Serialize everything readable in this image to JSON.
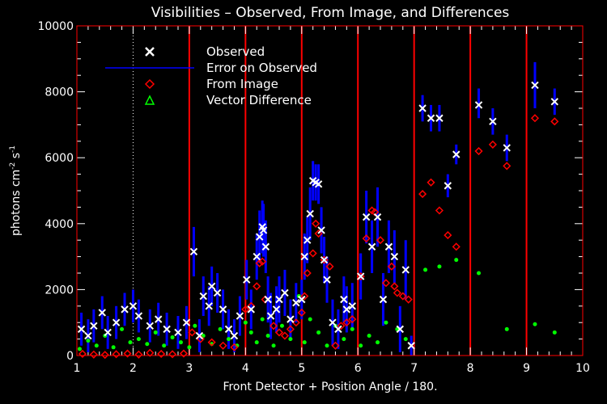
{
  "chart_data": {
    "type": "scatter",
    "title": "Visibilities – Observed, From Image, and Differences",
    "xlabel": "Front Detector + Position Angle / 180.",
    "ylabel_main": "photons cm",
    "ylabel_exp1": "-2",
    "ylabel_mid": " s",
    "ylabel_exp2": "-1",
    "xlim": [
      1,
      10
    ],
    "ylim": [
      0,
      10000
    ],
    "xticks": [
      1,
      2,
      3,
      4,
      5,
      6,
      7,
      8,
      9,
      10
    ],
    "yticks": [
      0,
      2000,
      4000,
      6000,
      8000,
      10000
    ],
    "detector_boundaries": [
      3,
      4,
      5,
      6,
      7,
      8,
      9
    ],
    "dotted_line_x": 2.0,
    "colors": {
      "observed": "#ffffff",
      "error": "#0000ff",
      "from_image": "#ff0000",
      "difference": "#00ff00",
      "boundary": "#ff0000",
      "frame": "#ff0000"
    },
    "legend": [
      {
        "label": "Observed",
        "symbol": "x",
        "color": "#ffffff"
      },
      {
        "label": "Error on Observed",
        "symbol": "line",
        "color": "#0000ff"
      },
      {
        "label": "From Image",
        "symbol": "diamond",
        "color": "#ff0000"
      },
      {
        "label": "Vector Difference",
        "symbol": "triangle",
        "color": "#00ff00"
      }
    ],
    "series": [
      {
        "name": "Observed",
        "x": [
          1.08,
          1.2,
          1.3,
          1.45,
          1.55,
          1.7,
          1.85,
          2.0,
          2.1,
          2.3,
          2.45,
          2.6,
          2.8,
          2.95,
          3.08,
          3.18,
          3.25,
          3.35,
          3.4,
          3.5,
          3.6,
          3.7,
          3.8,
          3.9,
          4.02,
          4.1,
          4.2,
          4.25,
          4.3,
          4.32,
          4.36,
          4.4,
          4.45,
          4.55,
          4.6,
          4.7,
          4.8,
          4.9,
          5.0,
          5.05,
          5.1,
          5.15,
          5.2,
          5.25,
          5.3,
          5.35,
          5.4,
          5.45,
          5.55,
          5.65,
          5.75,
          5.8,
          5.9,
          6.05,
          6.15,
          6.25,
          6.35,
          6.45,
          6.55,
          6.65,
          6.75,
          6.85,
          6.95,
          7.15,
          7.3,
          7.45,
          7.6,
          7.75,
          8.15,
          8.4,
          8.65,
          9.15,
          9.5
        ],
        "y": [
          800,
          600,
          900,
          1300,
          700,
          1000,
          1400,
          1500,
          1200,
          900,
          1100,
          800,
          700,
          1000,
          3150,
          600,
          1800,
          1500,
          2100,
          1900,
          1400,
          800,
          600,
          1200,
          2300,
          1400,
          3000,
          3600,
          3900,
          3800,
          3300,
          1700,
          1200,
          1400,
          1700,
          1900,
          1100,
          1600,
          1700,
          3000,
          3500,
          4300,
          5300,
          5250,
          5200,
          3800,
          2900,
          2300,
          1000,
          800,
          1700,
          1400,
          1500,
          2400,
          4200,
          3300,
          4200,
          1700,
          3300,
          3000,
          800,
          2600,
          300,
          7500,
          7200,
          7200,
          5150,
          6100,
          7600,
          7100,
          6300,
          8200,
          7700
        ]
      },
      {
        "name": "Error on Observed",
        "x": [
          1.08,
          1.2,
          1.3,
          1.45,
          1.55,
          1.7,
          1.85,
          2.0,
          2.1,
          2.3,
          2.45,
          2.6,
          2.8,
          2.95,
          3.08,
          3.18,
          3.25,
          3.35,
          3.4,
          3.5,
          3.6,
          3.7,
          3.8,
          3.9,
          4.02,
          4.1,
          4.2,
          4.25,
          4.3,
          4.32,
          4.36,
          4.4,
          4.45,
          4.55,
          4.6,
          4.7,
          4.8,
          4.9,
          5.0,
          5.05,
          5.1,
          5.15,
          5.2,
          5.25,
          5.3,
          5.35,
          5.4,
          5.45,
          5.55,
          5.65,
          5.75,
          5.8,
          5.9,
          6.05,
          6.15,
          6.25,
          6.35,
          6.45,
          6.55,
          6.65,
          6.75,
          6.85,
          6.95,
          7.15,
          7.3,
          7.45,
          7.6,
          7.75,
          8.15,
          8.4,
          8.65,
          9.15,
          9.5
        ],
        "low": [
          300,
          100,
          400,
          800,
          200,
          500,
          900,
          1000,
          700,
          400,
          600,
          300,
          200,
          500,
          2400,
          100,
          1200,
          900,
          1500,
          1300,
          800,
          200,
          100,
          600,
          1700,
          800,
          2300,
          2800,
          3100,
          3000,
          2500,
          1000,
          500,
          700,
          1000,
          1200,
          500,
          1000,
          1100,
          2300,
          2800,
          3500,
          4700,
          4700,
          4600,
          3100,
          2200,
          1600,
          300,
          200,
          1000,
          700,
          800,
          1700,
          3400,
          2500,
          3300,
          900,
          2500,
          2200,
          100,
          1700,
          0,
          7100,
          6800,
          6800,
          4800,
          5800,
          7200,
          6700,
          5900,
          7500,
          7300
        ],
        "high": [
          1300,
          1100,
          1400,
          1800,
          1200,
          1500,
          1900,
          2000,
          1700,
          1400,
          1600,
          1300,
          1200,
          1500,
          3900,
          1100,
          2400,
          2100,
          2700,
          2500,
          2000,
          1400,
          1100,
          1800,
          2900,
          2000,
          3700,
          4400,
          4700,
          4600,
          4100,
          2400,
          1900,
          2100,
          2400,
          2600,
          1700,
          2200,
          2300,
          3700,
          4200,
          5100,
          5900,
          5800,
          5800,
          4500,
          3600,
          3000,
          1700,
          1400,
          2400,
          2100,
          2200,
          3100,
          5000,
          4100,
          5100,
          2500,
          4100,
          3800,
          1500,
          3500,
          600,
          7900,
          7600,
          7600,
          5500,
          6400,
          8100,
          7500,
          6700,
          8900,
          8100
        ]
      },
      {
        "name": "From Image",
        "x": [
          1.1,
          1.3,
          1.5,
          1.7,
          1.9,
          2.1,
          2.3,
          2.5,
          2.7,
          2.9,
          3.05,
          3.2,
          3.4,
          3.6,
          3.8,
          4.0,
          4.1,
          4.2,
          4.25,
          4.3,
          4.35,
          4.5,
          4.6,
          4.7,
          4.8,
          4.9,
          5.0,
          5.05,
          5.1,
          5.2,
          5.25,
          5.3,
          5.4,
          5.5,
          5.6,
          5.7,
          5.8,
          5.9,
          6.05,
          6.15,
          6.25,
          6.3,
          6.4,
          6.5,
          6.6,
          6.65,
          6.7,
          6.8,
          6.9,
          7.15,
          7.3,
          7.45,
          7.6,
          7.75,
          8.15,
          8.4,
          8.65,
          9.15,
          9.5
        ],
        "y": [
          50,
          30,
          20,
          40,
          60,
          30,
          80,
          50,
          40,
          60,
          700,
          500,
          400,
          300,
          250,
          1400,
          1500,
          2100,
          2800,
          2850,
          1700,
          900,
          700,
          600,
          800,
          1000,
          1300,
          1800,
          2500,
          3100,
          4000,
          3700,
          2900,
          2700,
          300,
          900,
          1000,
          1100,
          2400,
          3550,
          4400,
          4350,
          3500,
          2200,
          2700,
          2100,
          1900,
          1800,
          1700,
          4900,
          5250,
          4400,
          3650,
          3300,
          6200,
          6400,
          5750,
          7200,
          7100
        ]
      },
      {
        "name": "Vector Difference",
        "x": [
          1.05,
          1.2,
          1.35,
          1.5,
          1.65,
          1.8,
          1.95,
          2.1,
          2.25,
          2.4,
          2.55,
          2.7,
          2.85,
          3.0,
          3.1,
          3.25,
          3.4,
          3.55,
          3.7,
          3.85,
          4.0,
          4.1,
          4.2,
          4.3,
          4.4,
          4.5,
          4.65,
          4.8,
          4.95,
          5.05,
          5.15,
          5.3,
          5.45,
          5.6,
          5.75,
          5.9,
          6.05,
          6.2,
          6.35,
          6.5,
          6.7,
          6.85,
          7.2,
          7.45,
          7.75,
          8.15,
          8.65,
          9.15,
          9.5
        ],
        "y": [
          200,
          450,
          300,
          600,
          250,
          800,
          400,
          500,
          350,
          700,
          300,
          550,
          400,
          250,
          900,
          600,
          350,
          800,
          500,
          300,
          1000,
          700,
          400,
          1100,
          600,
          300,
          900,
          500,
          1800,
          400,
          1100,
          700,
          300,
          900,
          500,
          800,
          300,
          600,
          400,
          1000,
          800,
          500,
          2600,
          2700,
          2900,
          2500,
          800,
          950,
          700
        ]
      }
    ]
  }
}
